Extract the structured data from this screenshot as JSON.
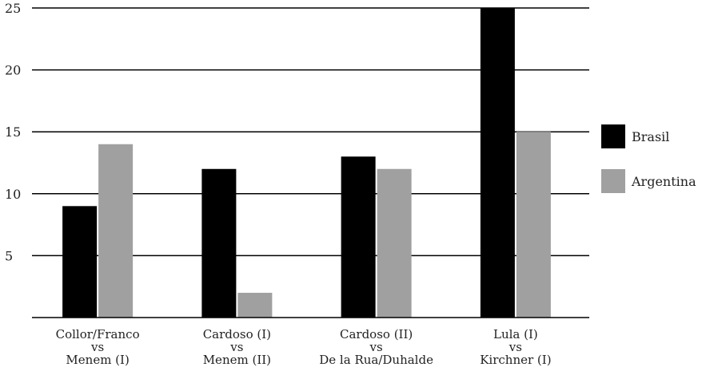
{
  "chart_data": {
    "type": "bar",
    "categories": [
      [
        "Collor/Franco",
        "vs",
        "Menem (I)"
      ],
      [
        "Cardoso (I)",
        "vs",
        "Menem (II)"
      ],
      [
        "Cardoso (II)",
        "vs",
        "De la Rua/Duhalde"
      ],
      [
        "Lula (I)",
        "vs",
        "Kirchner (I)"
      ]
    ],
    "series": [
      {
        "name": "Brasil",
        "color": "#000000",
        "values": [
          9,
          12,
          13,
          25
        ]
      },
      {
        "name": "Argentina",
        "color": "#a0a0a0",
        "values": [
          14,
          2,
          12,
          15
        ]
      }
    ],
    "yticks": [
      5,
      10,
      15,
      20,
      25
    ],
    "ylim": [
      0,
      25
    ],
    "grid": true,
    "legend_position": "right"
  }
}
